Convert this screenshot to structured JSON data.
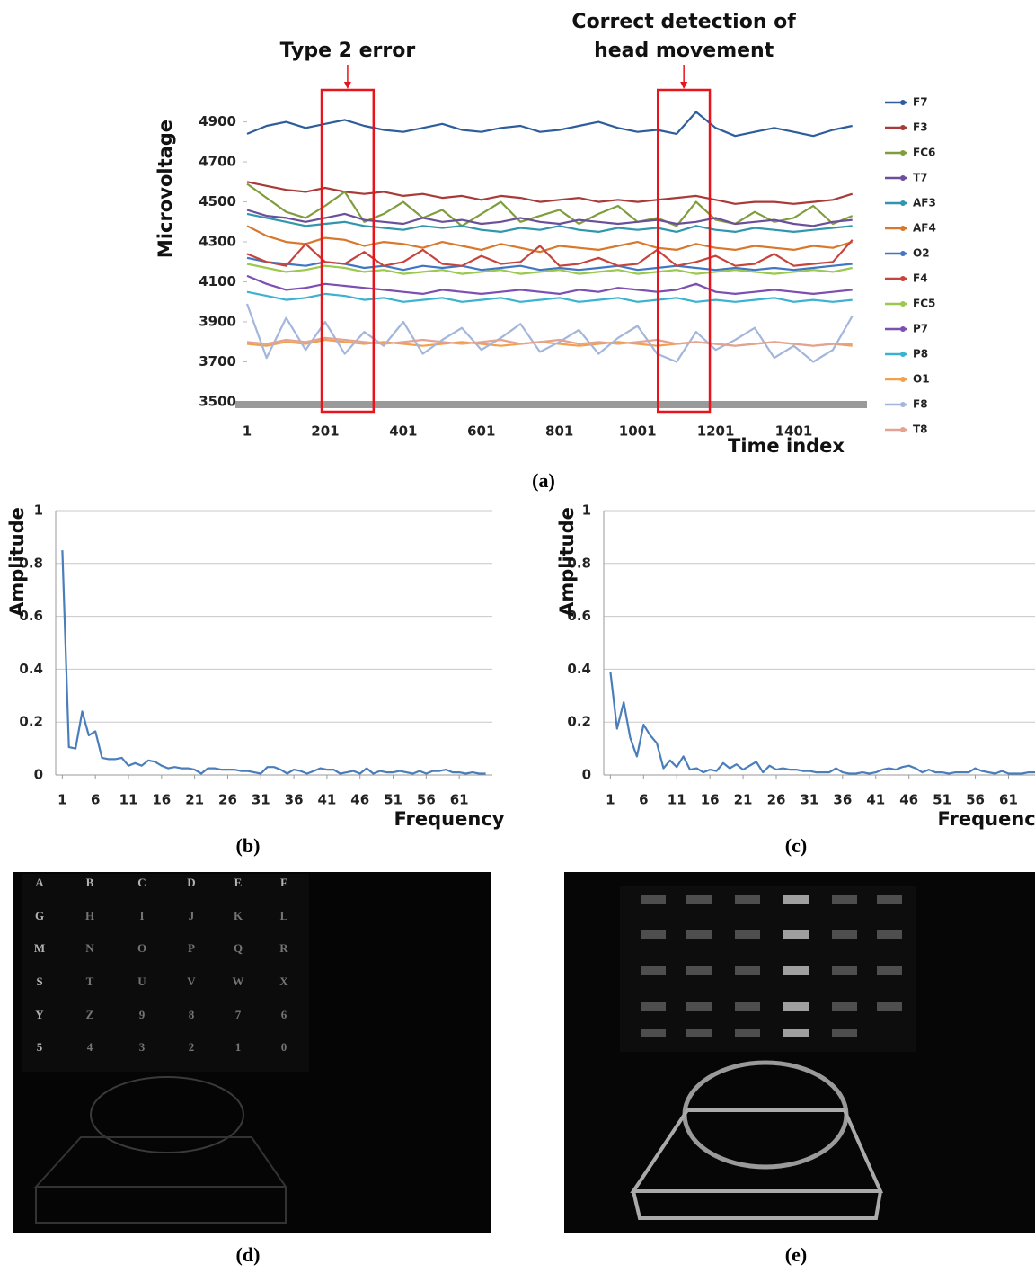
{
  "chart_data": [
    {
      "type": "line",
      "panel_label": "(a)",
      "y_label": "Microvoltage",
      "x_label": "Time index",
      "x": [
        1,
        51,
        101,
        151,
        201,
        251,
        301,
        351,
        401,
        451,
        501,
        551,
        601,
        651,
        701,
        751,
        801,
        851,
        901,
        951,
        1001,
        1051,
        1101,
        1151,
        1201,
        1251,
        1301,
        1351,
        1401,
        1451,
        1501,
        1551
      ],
      "xlim": [
        1,
        1600
      ],
      "xticks": [
        1,
        201,
        401,
        601,
        801,
        1001,
        1201,
        1401
      ],
      "ylim": [
        3500,
        5060
      ],
      "yticks": [
        3500,
        3700,
        3900,
        4100,
        4300,
        4500,
        4700,
        4900
      ],
      "grid": false,
      "legend": "right",
      "highlights": [
        {
          "x0": 192,
          "x1": 325,
          "label": [
            "Type 2 error"
          ],
          "color": "#e8141c"
        },
        {
          "x0": 1053,
          "x1": 1186,
          "label": [
            "Correct detection of",
            "head movement"
          ],
          "color": "#e8141c"
        }
      ],
      "series": [
        {
          "name": "F7",
          "color": "#2e5d9b",
          "values": [
            4840,
            4880,
            4900,
            4870,
            4890,
            4910,
            4880,
            4860,
            4850,
            4870,
            4890,
            4860,
            4850,
            4870,
            4880,
            4850,
            4860,
            4880,
            4900,
            4870,
            4850,
            4860,
            4840,
            4950,
            4870,
            4830,
            4850,
            4870,
            4850,
            4830,
            4860,
            4880
          ]
        },
        {
          "name": "F3",
          "color": "#a83a38",
          "values": [
            4600,
            4580,
            4560,
            4550,
            4570,
            4550,
            4540,
            4550,
            4530,
            4540,
            4520,
            4530,
            4510,
            4530,
            4520,
            4500,
            4510,
            4520,
            4500,
            4510,
            4500,
            4510,
            4520,
            4530,
            4510,
            4490,
            4500,
            4500,
            4490,
            4500,
            4510,
            4540
          ]
        },
        {
          "name": "FC6",
          "color": "#7f9d3c",
          "values": [
            4590,
            4520,
            4450,
            4420,
            4480,
            4550,
            4400,
            4440,
            4500,
            4420,
            4460,
            4380,
            4440,
            4500,
            4400,
            4430,
            4460,
            4390,
            4440,
            4480,
            4400,
            4420,
            4380,
            4500,
            4410,
            4390,
            4450,
            4400,
            4420,
            4480,
            4390,
            4430
          ]
        },
        {
          "name": "T7",
          "color": "#6b4f9a",
          "values": [
            4460,
            4430,
            4420,
            4400,
            4420,
            4440,
            4410,
            4400,
            4390,
            4420,
            4400,
            4410,
            4390,
            4400,
            4420,
            4400,
            4390,
            4410,
            4400,
            4390,
            4400,
            4410,
            4390,
            4400,
            4420,
            4390,
            4400,
            4410,
            4390,
            4380,
            4400,
            4410
          ]
        },
        {
          "name": "AF3",
          "color": "#2f96ad",
          "values": [
            4440,
            4420,
            4400,
            4380,
            4390,
            4400,
            4380,
            4370,
            4360,
            4380,
            4370,
            4380,
            4360,
            4350,
            4370,
            4360,
            4380,
            4360,
            4350,
            4370,
            4360,
            4370,
            4350,
            4380,
            4360,
            4350,
            4370,
            4360,
            4350,
            4360,
            4370,
            4380
          ]
        },
        {
          "name": "AF4",
          "color": "#d8782c",
          "values": [
            4380,
            4330,
            4300,
            4290,
            4320,
            4310,
            4280,
            4300,
            4290,
            4270,
            4300,
            4280,
            4260,
            4290,
            4270,
            4250,
            4280,
            4270,
            4260,
            4280,
            4300,
            4270,
            4260,
            4290,
            4270,
            4260,
            4280,
            4270,
            4260,
            4280,
            4270,
            4300
          ]
        },
        {
          "name": "O2",
          "color": "#4176c4",
          "values": [
            4220,
            4200,
            4190,
            4180,
            4200,
            4190,
            4170,
            4180,
            4160,
            4180,
            4170,
            4180,
            4160,
            4170,
            4180,
            4160,
            4170,
            4160,
            4170,
            4180,
            4160,
            4170,
            4180,
            4170,
            4160,
            4170,
            4160,
            4170,
            4160,
            4170,
            4180,
            4190
          ]
        },
        {
          "name": "F4",
          "color": "#c6443e",
          "values": [
            4240,
            4200,
            4180,
            4290,
            4200,
            4190,
            4250,
            4180,
            4200,
            4260,
            4190,
            4180,
            4230,
            4190,
            4200,
            4280,
            4180,
            4190,
            4220,
            4180,
            4190,
            4260,
            4180,
            4200,
            4230,
            4180,
            4190,
            4240,
            4180,
            4190,
            4200,
            4310
          ]
        },
        {
          "name": "FC5",
          "color": "#9bc84e",
          "values": [
            4190,
            4170,
            4150,
            4160,
            4180,
            4170,
            4150,
            4160,
            4140,
            4150,
            4160,
            4140,
            4150,
            4160,
            4140,
            4150,
            4160,
            4140,
            4150,
            4160,
            4140,
            4150,
            4160,
            4140,
            4150,
            4160,
            4150,
            4140,
            4150,
            4160,
            4150,
            4170
          ]
        },
        {
          "name": "P7",
          "color": "#7c4fb0",
          "values": [
            4130,
            4090,
            4060,
            4070,
            4090,
            4080,
            4070,
            4060,
            4050,
            4040,
            4060,
            4050,
            4040,
            4050,
            4060,
            4050,
            4040,
            4060,
            4050,
            4070,
            4060,
            4050,
            4060,
            4090,
            4050,
            4040,
            4050,
            4060,
            4050,
            4040,
            4050,
            4060
          ]
        },
        {
          "name": "P8",
          "color": "#3cb2d0",
          "values": [
            4050,
            4030,
            4010,
            4020,
            4040,
            4030,
            4010,
            4020,
            4000,
            4010,
            4020,
            4000,
            4010,
            4020,
            4000,
            4010,
            4020,
            4000,
            4010,
            4020,
            4000,
            4010,
            4020,
            4000,
            4010,
            4000,
            4010,
            4020,
            4000,
            4010,
            4000,
            4010
          ]
        },
        {
          "name": "O1",
          "color": "#f2a04e",
          "values": [
            3790,
            3780,
            3800,
            3790,
            3810,
            3800,
            3790,
            3800,
            3790,
            3780,
            3790,
            3800,
            3790,
            3780,
            3790,
            3800,
            3790,
            3780,
            3790,
            3800,
            3790,
            3780,
            3790,
            3800,
            3790,
            3780,
            3790,
            3800,
            3790,
            3780,
            3790,
            3780
          ]
        },
        {
          "name": "F8",
          "color": "#a3b6dc",
          "values": [
            3990,
            3720,
            3920,
            3760,
            3900,
            3740,
            3850,
            3780,
            3900,
            3740,
            3810,
            3870,
            3760,
            3820,
            3890,
            3750,
            3800,
            3860,
            3740,
            3820,
            3880,
            3740,
            3700,
            3850,
            3760,
            3810,
            3870,
            3720,
            3780,
            3700,
            3760,
            3930
          ]
        },
        {
          "name": "T8",
          "color": "#e2a392",
          "values": [
            3800,
            3790,
            3810,
            3800,
            3820,
            3810,
            3800,
            3790,
            3800,
            3810,
            3800,
            3790,
            3800,
            3810,
            3790,
            3800,
            3810,
            3790,
            3800,
            3790,
            3800,
            3810,
            3790,
            3800,
            3790,
            3780,
            3790,
            3800,
            3790,
            3780,
            3790,
            3790
          ]
        }
      ]
    },
    {
      "type": "line",
      "panel_label": "(b)",
      "y_label": "Amplitude",
      "x_label": "Frequency",
      "color": "#4a7ebb",
      "x": [
        1,
        2,
        3,
        4,
        5,
        6,
        7,
        8,
        9,
        10,
        11,
        12,
        13,
        14,
        15,
        16,
        17,
        18,
        19,
        20,
        21,
        22,
        23,
        24,
        25,
        26,
        27,
        28,
        29,
        30,
        31,
        32,
        33,
        34,
        35,
        36,
        37,
        38,
        39,
        40,
        41,
        42,
        43,
        44,
        45,
        46,
        47,
        48,
        49,
        50,
        51,
        52,
        53,
        54,
        55,
        56,
        57,
        58,
        59,
        60,
        61,
        62,
        63,
        64,
        65
      ],
      "values": [
        0.85,
        0.105,
        0.1,
        0.24,
        0.15,
        0.165,
        0.065,
        0.06,
        0.06,
        0.065,
        0.035,
        0.045,
        0.035,
        0.055,
        0.05,
        0.035,
        0.025,
        0.03,
        0.025,
        0.025,
        0.02,
        0.005,
        0.025,
        0.025,
        0.02,
        0.02,
        0.02,
        0.015,
        0.015,
        0.01,
        0.005,
        0.03,
        0.03,
        0.02,
        0.005,
        0.02,
        0.015,
        0.005,
        0.015,
        0.025,
        0.02,
        0.02,
        0.005,
        0.01,
        0.015,
        0.005,
        0.025,
        0.005,
        0.015,
        0.01,
        0.01,
        0.015,
        0.01,
        0.005,
        0.015,
        0.005,
        0.015,
        0.015,
        0.02,
        0.01,
        0.01,
        0.005,
        0.01,
        0.005,
        0.005
      ],
      "xlim": [
        0,
        66
      ],
      "xticks": [
        1,
        6,
        11,
        16,
        21,
        26,
        31,
        36,
        41,
        46,
        51,
        56,
        61
      ],
      "ylim": [
        0,
        1
      ],
      "yticks": [
        0,
        0.2,
        0.4,
        0.6,
        0.8,
        1
      ],
      "grid": true
    },
    {
      "type": "line",
      "panel_label": "(c)",
      "y_label": "Amplitude",
      "x_label": "Frequency",
      "color": "#4a7ebb",
      "x": [
        1,
        2,
        3,
        4,
        5,
        6,
        7,
        8,
        9,
        10,
        11,
        12,
        13,
        14,
        15,
        16,
        17,
        18,
        19,
        20,
        21,
        22,
        23,
        24,
        25,
        26,
        27,
        28,
        29,
        30,
        31,
        32,
        33,
        34,
        35,
        36,
        37,
        38,
        39,
        40,
        41,
        42,
        43,
        44,
        45,
        46,
        47,
        48,
        49,
        50,
        51,
        52,
        53,
        54,
        55,
        56,
        57,
        58,
        59,
        60,
        61,
        62,
        63,
        64,
        65
      ],
      "values": [
        0.39,
        0.175,
        0.275,
        0.14,
        0.07,
        0.19,
        0.15,
        0.12,
        0.025,
        0.055,
        0.03,
        0.07,
        0.02,
        0.025,
        0.01,
        0.02,
        0.015,
        0.045,
        0.025,
        0.04,
        0.02,
        0.035,
        0.05,
        0.01,
        0.035,
        0.02,
        0.025,
        0.02,
        0.02,
        0.015,
        0.015,
        0.01,
        0.01,
        0.01,
        0.025,
        0.01,
        0.005,
        0.005,
        0.01,
        0.005,
        0.01,
        0.02,
        0.025,
        0.02,
        0.03,
        0.035,
        0.025,
        0.01,
        0.02,
        0.01,
        0.01,
        0.005,
        0.01,
        0.01,
        0.01,
        0.025,
        0.015,
        0.01,
        0.005,
        0.015,
        0.005,
        0.005,
        0.005,
        0.01,
        0.01
      ],
      "xlim": [
        0,
        65
      ],
      "xticks": [
        1,
        6,
        11,
        16,
        21,
        26,
        31,
        36,
        41,
        46,
        51,
        56,
        61
      ],
      "ylim": [
        0,
        1
      ],
      "yticks": [
        0,
        0.2,
        0.4,
        0.6,
        0.8,
        1
      ],
      "grid": true
    }
  ],
  "images": [
    {
      "panel_label": "(d)",
      "keypad": [
        [
          "A",
          "B",
          "C",
          "D",
          "E",
          "F"
        ],
        [
          "G",
          "H",
          "I",
          "J",
          "K",
          "L"
        ],
        [
          "M",
          "N",
          "O",
          "P",
          "Q",
          "R"
        ],
        [
          "S",
          "T",
          "U",
          "V",
          "W",
          "X"
        ],
        [
          "Y",
          "Z",
          "9",
          "8",
          "7",
          "6"
        ],
        [
          "5",
          "4",
          "3",
          "2",
          "1",
          "0"
        ]
      ]
    },
    {
      "panel_label": "(e)"
    }
  ]
}
